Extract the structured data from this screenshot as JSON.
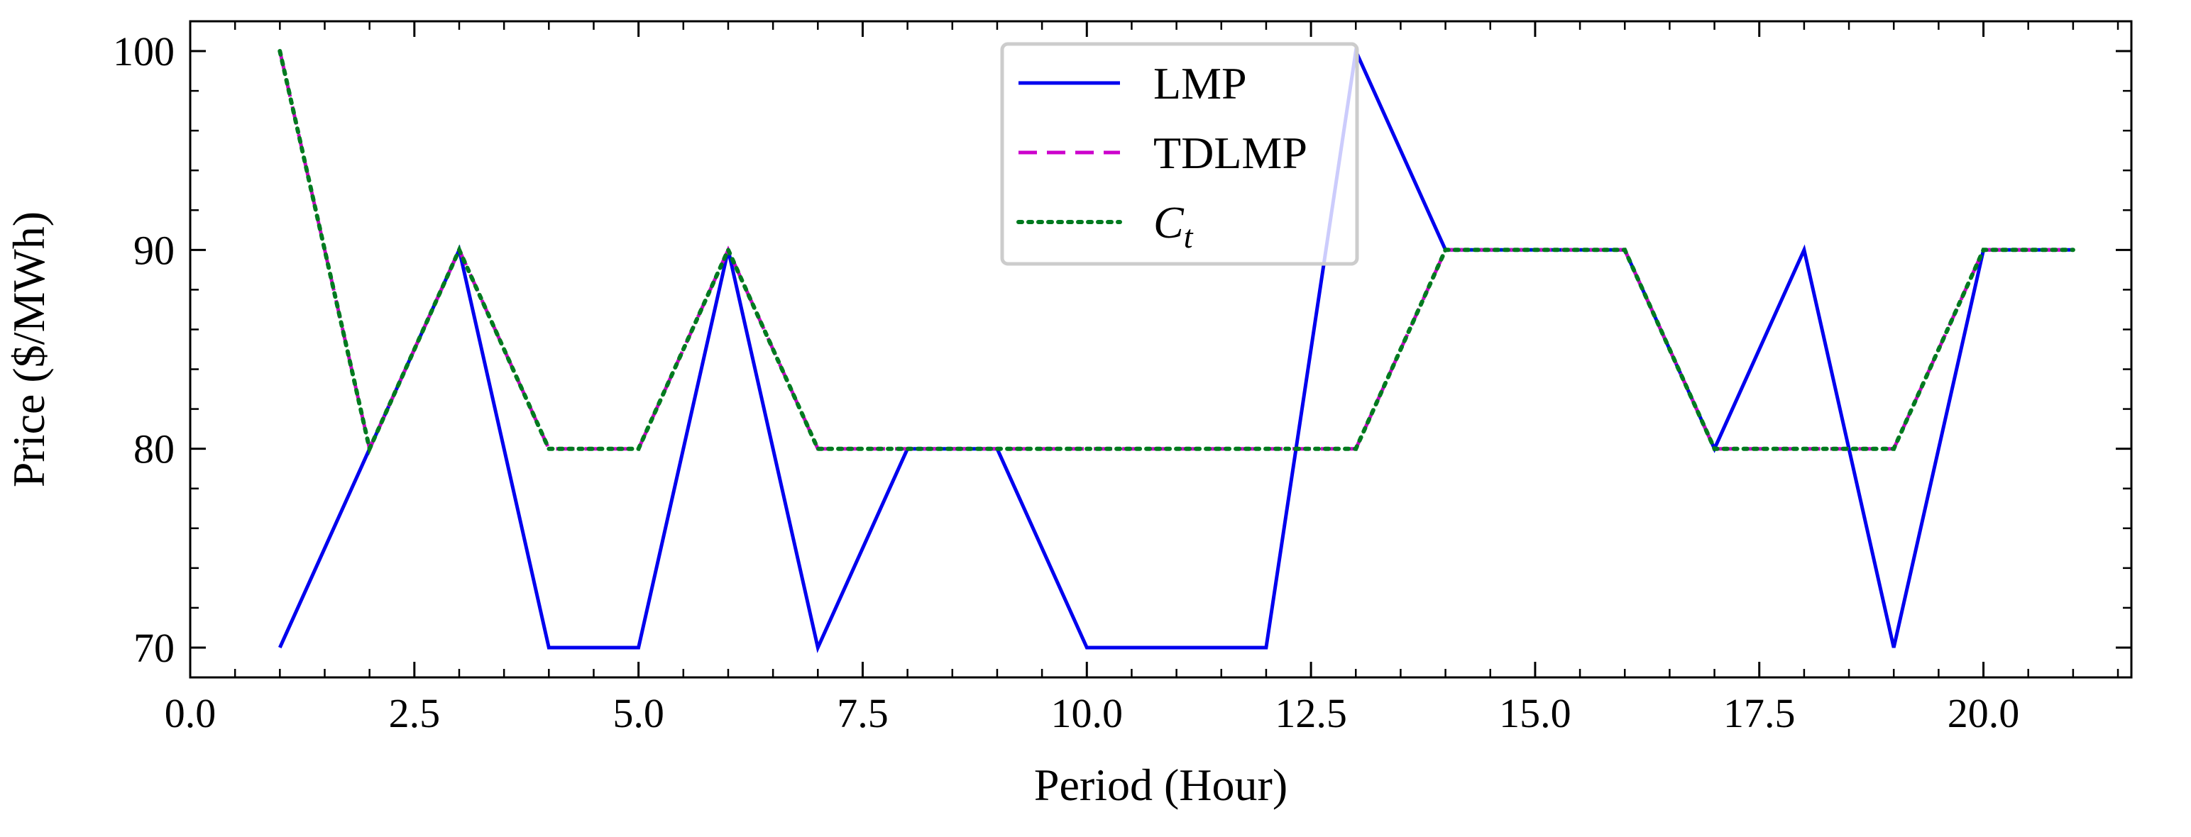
{
  "chart_data": {
    "type": "line",
    "title": "",
    "xlabel": "Period (Hour)",
    "ylabel": "Price ($/MWh)",
    "xlim": [
      0,
      21.65
    ],
    "ylim": [
      68.5,
      101.5
    ],
    "xticks": [
      0.0,
      2.5,
      5.0,
      7.5,
      10.0,
      12.5,
      15.0,
      17.5,
      20.0
    ],
    "xtick_labels": [
      "0.0",
      "2.5",
      "5.0",
      "7.5",
      "10.0",
      "12.5",
      "15.0",
      "17.5",
      "20.0"
    ],
    "yticks": [
      70,
      80,
      90,
      100
    ],
    "ytick_labels": [
      "70",
      "80",
      "90",
      "100"
    ],
    "grid": false,
    "legend_position": "top-center",
    "x": [
      1,
      2,
      3,
      4,
      5,
      6,
      7,
      8,
      9,
      10,
      11,
      12,
      13,
      14,
      15,
      16,
      17,
      18,
      19,
      20,
      21
    ],
    "series": [
      {
        "name": "LMP",
        "color": "#0000ee",
        "style": "solid",
        "values": [
          70,
          80,
          90,
          70,
          70,
          90,
          70,
          80,
          80,
          70,
          70,
          70,
          100,
          90,
          90,
          90,
          80,
          90,
          70,
          90,
          90
        ]
      },
      {
        "name": "TDLMP",
        "color": "#cc00cc",
        "style": "dashed",
        "values": [
          100,
          80,
          90,
          80,
          80,
          90,
          80,
          80,
          80,
          80,
          80,
          80,
          80,
          90,
          90,
          90,
          80,
          80,
          80,
          90,
          90
        ]
      },
      {
        "name": "C",
        "name_subscript": "t",
        "color": "#007a1f",
        "style": "dotted",
        "values": [
          100,
          80,
          90,
          80,
          80,
          90,
          80,
          80,
          80,
          80,
          80,
          80,
          80,
          90,
          90,
          90,
          80,
          80,
          80,
          90,
          90
        ]
      }
    ]
  }
}
